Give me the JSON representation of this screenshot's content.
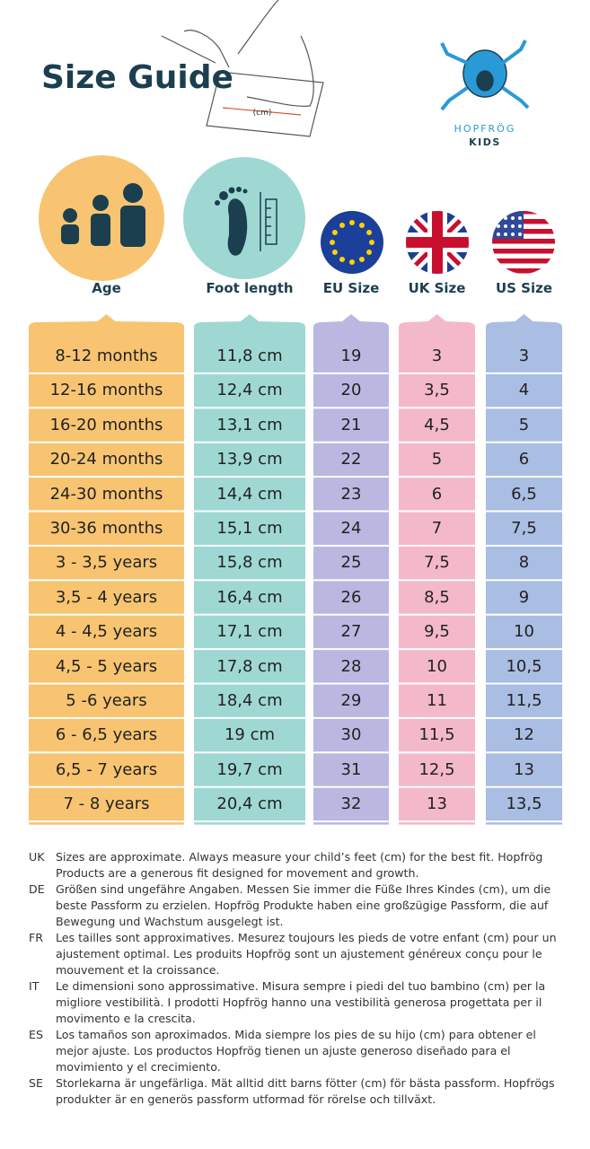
{
  "header": {
    "title": "Size Guide",
    "measure_label": "(cm)",
    "brand": "HOPFRÖG",
    "brand_sub": "KIDS"
  },
  "table": {
    "headers": [
      "Age",
      "Foot length",
      "EU Size",
      "UK Size",
      "US Size"
    ],
    "rows": [
      [
        "8-12 months",
        "11,8 cm",
        "19",
        "3",
        "3"
      ],
      [
        "12-16 months",
        "12,4 cm",
        "20",
        "3,5",
        "4"
      ],
      [
        "16-20 months",
        "13,1 cm",
        "21",
        "4,5",
        "5"
      ],
      [
        "20-24 months",
        "13,9 cm",
        "22",
        "5",
        "6"
      ],
      [
        "24-30 months",
        "14,4 cm",
        "23",
        "6",
        "6,5"
      ],
      [
        "30-36 months",
        "15,1 cm",
        "24",
        "7",
        "7,5"
      ],
      [
        "3 - 3,5 years",
        "15,8 cm",
        "25",
        "7,5",
        "8"
      ],
      [
        "3,5 - 4 years",
        "16,4 cm",
        "26",
        "8,5",
        "9"
      ],
      [
        "4 - 4,5 years",
        "17,1 cm",
        "27",
        "9,5",
        "10"
      ],
      [
        "4,5 - 5 years",
        "17,8 cm",
        "28",
        "10",
        "10,5"
      ],
      [
        "5 -6 years",
        "18,4 cm",
        "29",
        "11",
        "11,5"
      ],
      [
        "6 - 6,5 years",
        "19 cm",
        "30",
        "11,5",
        "12"
      ],
      [
        "6,5 - 7 years",
        "19,7 cm",
        "31",
        "12,5",
        "13"
      ],
      [
        "7 - 8 years",
        "20,4 cm",
        "32",
        "13",
        "13,5"
      ]
    ]
  },
  "notes": [
    {
      "code": "UK",
      "text": "Sizes are approximate. Always measure your child’s feet (cm) for the best fit.  Hopfrög Products are a generous fit designed for movement and growth."
    },
    {
      "code": "DE",
      "text": "Größen sind ungefähre Angaben. Messen Sie immer die Füße Ihres Kindes (cm), um die beste Passform zu erzielen. Hopfrög Produkte haben eine großzügige Passform, die auf Bewegung und Wachstum ausgelegt ist."
    },
    {
      "code": "FR",
      "text": "Les tailles sont approximatives. Mesurez toujours les pieds de votre enfant (cm) pour un ajustement optimal. Les produits Hopfrög sont un ajustement généreux conçu pour le mouvement et la croissance."
    },
    {
      "code": "IT",
      "text": "Le dimensioni sono approssimative. Misura sempre i piedi del tuo bambino (cm) per la migliore vestibilità. I prodotti Hopfrög hanno una vestibilità generosa progettata per il movimento e la crescita."
    },
    {
      "code": "ES",
      "text": "Los tamaños son aproximados. Mida siempre los pies de su hijo (cm) para obtener el mejor ajuste. Los productos Hopfrög tienen un ajuste generoso diseñado para el movimiento y el crecimiento."
    },
    {
      "code": "SE",
      "text": "Storlekarna är ungefärliga. Mät alltid ditt barns fötter (cm) för bästa passform. Hopfrögs produkter är en generös passform utformad för rörelse och tillväxt."
    }
  ]
}
